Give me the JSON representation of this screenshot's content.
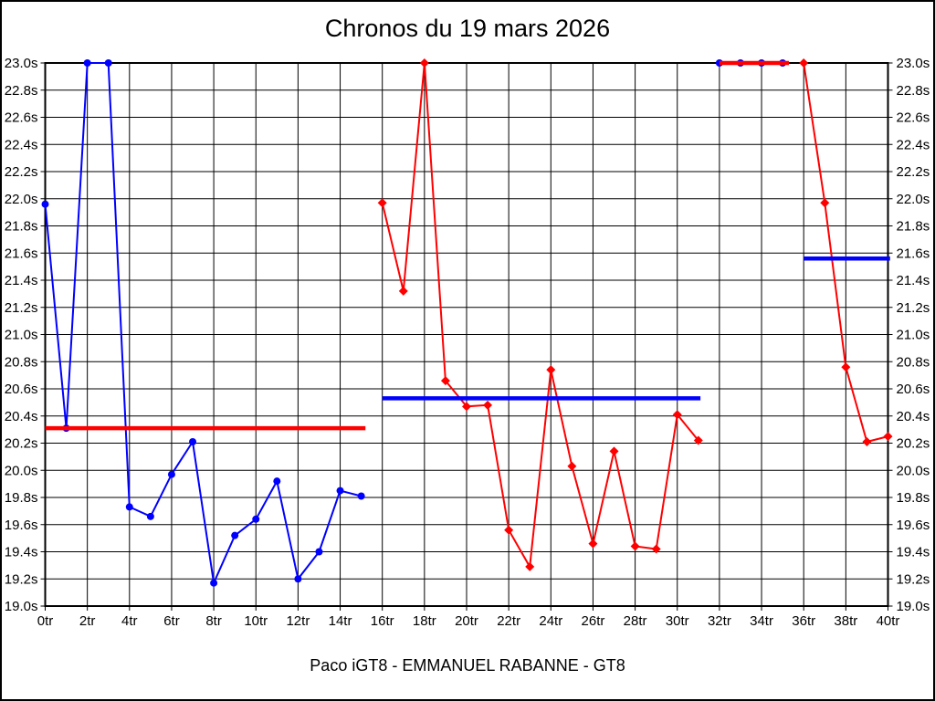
{
  "page": {
    "title": "Chronos du 19 mars 2026",
    "footer": "Paco iGT8 - EMMANUEL RABANNE - GT8"
  },
  "chart_data": {
    "type": "line",
    "title": "Chronos du 19 mars 2026",
    "subtitle": "Paco iGT8 - EMMANUEL RABANNE - GT8",
    "xlabel": "",
    "ylabel": "",
    "x_unit": "tr",
    "y_unit": "s",
    "xlim": [
      0,
      40
    ],
    "ylim": [
      19.0,
      23.0
    ],
    "grid": true,
    "legend": "none",
    "x_tick_labels": [
      "0tr",
      "2tr",
      "4tr",
      "6tr",
      "8tr",
      "10tr",
      "12tr",
      "14tr",
      "16tr",
      "18tr",
      "20tr",
      "22tr",
      "24tr",
      "26tr",
      "28tr",
      "30tr",
      "32tr",
      "34tr",
      "36tr",
      "38tr",
      "40tr"
    ],
    "y_tick_labels": [
      "23.0s",
      "22.8s",
      "22.6s",
      "22.4s",
      "22.2s",
      "22.0s",
      "21.8s",
      "21.6s",
      "21.4s",
      "21.2s",
      "21.0s",
      "20.8s",
      "20.6s",
      "20.4s",
      "20.2s",
      "20.0s",
      "19.8s",
      "19.6s",
      "19.4s",
      "19.2s",
      "19.0s"
    ],
    "colors": {
      "stint_blue": "#0000ff",
      "stint_red": "#ff0000",
      "grid": "#000000",
      "text": "#000000"
    },
    "series": [
      {
        "name": "stint-1-laps",
        "color": "#0000ff",
        "marker": "circle",
        "x": [
          0,
          1,
          2,
          3,
          4,
          5,
          6,
          7,
          8,
          9,
          10,
          11,
          12,
          13,
          14,
          15
        ],
        "values": [
          21.96,
          20.31,
          23.0,
          23.0,
          19.73,
          19.66,
          19.97,
          20.21,
          19.17,
          19.52,
          19.64,
          19.92,
          19.2,
          19.4,
          19.85,
          19.81
        ]
      },
      {
        "name": "stint-1-average",
        "type": "average-line",
        "color": "#ff0000",
        "value": 20.31,
        "x_span": [
          0,
          15.2
        ]
      },
      {
        "name": "stint-2-laps",
        "color": "#ff0000",
        "marker": "diamond",
        "x": [
          16,
          17,
          18,
          19,
          20,
          21,
          22,
          23,
          24,
          25,
          26,
          27,
          28,
          29,
          30,
          31
        ],
        "values": [
          21.97,
          21.32,
          23.0,
          20.66,
          20.47,
          20.48,
          19.56,
          19.29,
          20.74,
          20.03,
          19.46,
          20.14,
          19.44,
          19.42,
          20.41,
          20.22
        ]
      },
      {
        "name": "stint-2-average",
        "type": "average-line",
        "color": "#0000ff",
        "value": 20.53,
        "x_span": [
          16,
          31.1
        ]
      },
      {
        "name": "stint-3-laps",
        "color": "#0000ff",
        "marker": "circle",
        "x": [
          32,
          33,
          34,
          35
        ],
        "values": [
          23.0,
          23.0,
          23.0,
          23.0
        ]
      },
      {
        "name": "stint-3-average",
        "type": "average-line",
        "color": "#ff0000",
        "value": 23.0,
        "x_span": [
          32,
          35.3
        ]
      },
      {
        "name": "stint-4-laps",
        "color": "#ff0000",
        "marker": "diamond",
        "x": [
          36,
          37,
          38,
          39,
          40
        ],
        "values": [
          23.0,
          21.97,
          20.76,
          20.21,
          20.25
        ]
      },
      {
        "name": "stint-4-average",
        "type": "average-line",
        "color": "#0000ff",
        "value": 21.56,
        "x_span": [
          36,
          40.1
        ]
      }
    ]
  }
}
